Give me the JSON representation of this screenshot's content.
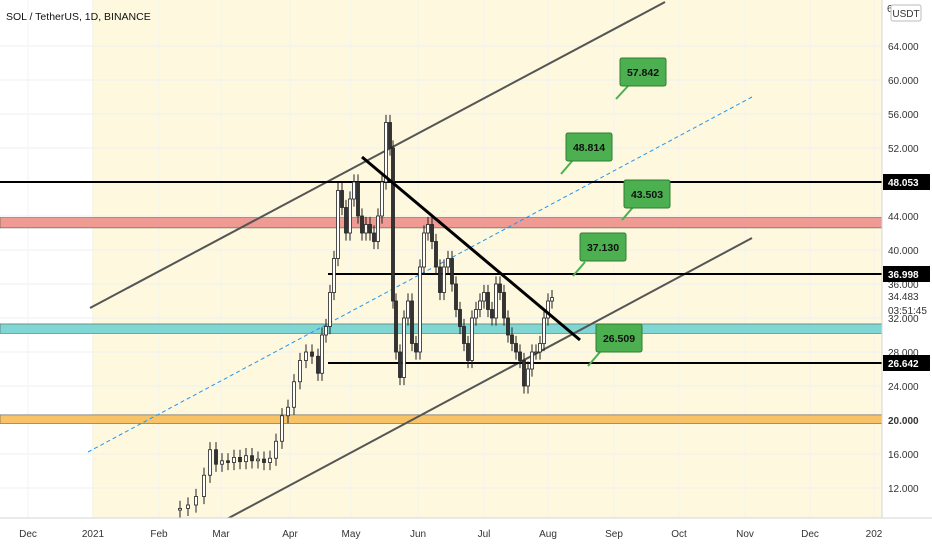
{
  "chart_data": {
    "type": "candlestick",
    "title": "SOL / TetherUS, 1D, BINANCE",
    "currency_button": "USDT",
    "top_partial_tick": "6",
    "y_ticks": [
      "64.000",
      "60.000",
      "56.000",
      "52.000",
      "48.000",
      "44.000",
      "40.000",
      "36.000",
      "32.000",
      "28.000",
      "24.000",
      "20.000",
      "16.000",
      "12.000"
    ],
    "x_ticks": [
      "Dec",
      "2021",
      "Feb",
      "Mar",
      "Apr",
      "May",
      "Jun",
      "Jul",
      "Aug",
      "Sep",
      "Oct",
      "Nov",
      "Dec",
      "202"
    ],
    "price_tags": [
      {
        "label": "48.053",
        "value": 48.053,
        "bg": "#000000",
        "fg": "#ffffff"
      },
      {
        "label": "36.998",
        "value": 36.998,
        "bg": "#000000",
        "fg": "#ffffff"
      },
      {
        "label": "26.642",
        "value": 26.642,
        "bg": "#000000",
        "fg": "#ffffff"
      },
      {
        "label": "20.000",
        "value": 20.0,
        "bg": "#ffffff",
        "fg": "#333333"
      }
    ],
    "current_price": {
      "price": "34.483",
      "countdown": "03:51:45"
    },
    "annotations": [
      {
        "label": "57.842"
      },
      {
        "label": "48.814"
      },
      {
        "label": "43.503"
      },
      {
        "label": "37.130"
      },
      {
        "label": "26.509"
      }
    ],
    "horizontal_levels": [
      48.053,
      36.998,
      26.642
    ],
    "zones": [
      {
        "name": "resistance",
        "from": 42.6,
        "to": 43.8,
        "color": "#ef9a93"
      },
      {
        "name": "support",
        "from": 30.2,
        "to": 31.3,
        "color": "#7fd6d2"
      },
      {
        "name": "base",
        "from": 19.6,
        "to": 20.6,
        "color": "#f7c366"
      }
    ],
    "colors": {
      "up": "#ffffff",
      "down": "#333333",
      "zone_fill": "#fdf8de",
      "bubble": "#4caf50",
      "dashed": "#2196f3"
    }
  }
}
